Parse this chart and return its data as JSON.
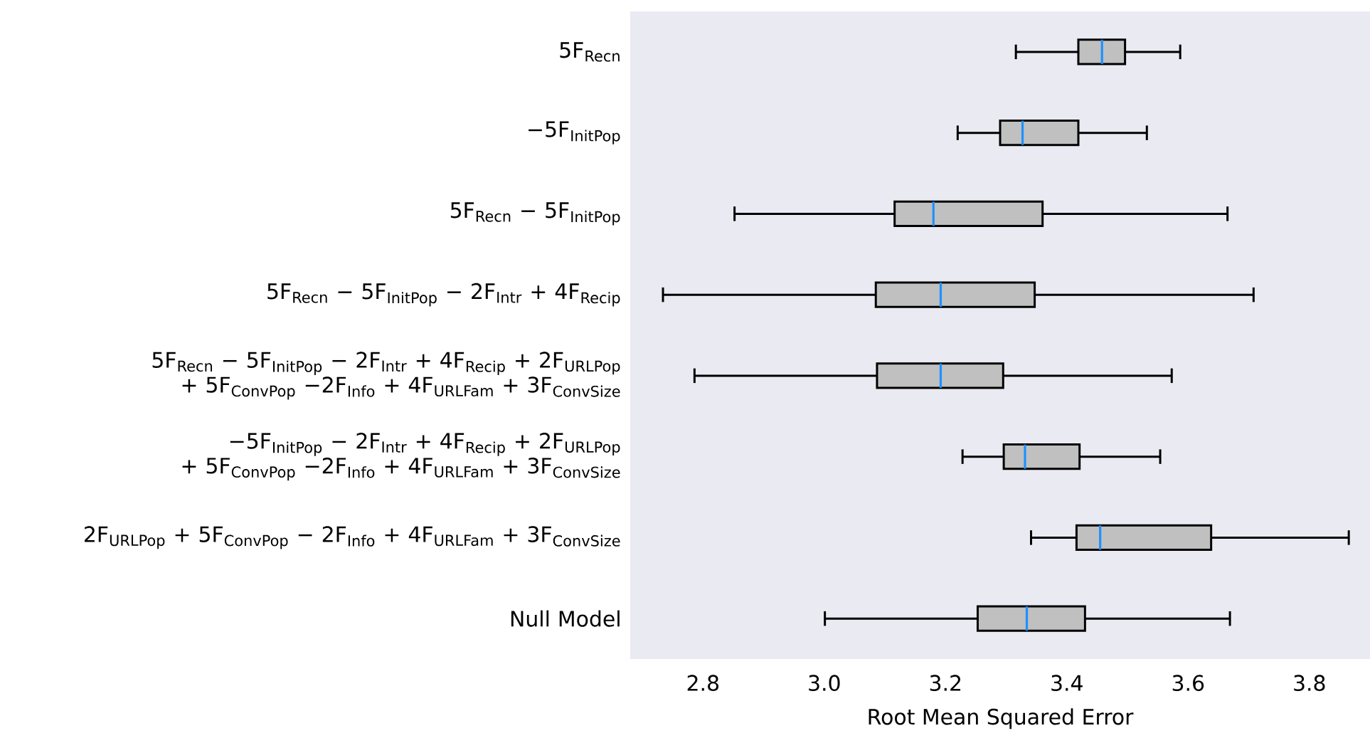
{
  "chart_data": {
    "type": "box",
    "orientation": "horizontal",
    "xlabel": "Root Mean Squared Error",
    "categories": [
      "5F$_{Recn}$",
      "−5F$_{InitPop}$",
      "5F$_{Recn}$ − 5F$_{InitPop}$",
      "5F$_{Recn}$ − 5F$_{InitPop}$ − 2F$_{Intr}$ + 4F$_{Recip}$",
      "5F$_{Recn}$ − 5F$_{InitPop}$ − 2F$_{Intr}$ + 4F$_{Recip}$ + 2F$_{URLPop}$ + 5F$_{ConvPop}$ −2F$_{Info}$ + 4F$_{URLFam}$ + 3F$_{ConvSize}$",
      "−5F$_{InitPop}$ − 2F$_{Intr}$ + 4F$_{Recip}$ + 2F$_{URLPop}$ + 5F$_{ConvPop}$ −2F$_{Info}$ + 4F$_{URLFam}$ + 3F$_{ConvSize}$",
      "2F$_{URLPop}$ + 5F$_{ConvPop}$ − 2F$_{Info}$ + 4F$_{URLFam}$ + 3F$_{ConvSize}$",
      "Null Model"
    ],
    "boxes": [
      {
        "low": 3.316,
        "q1": 3.419,
        "median": 3.458,
        "q3": 3.496,
        "high": 3.587
      },
      {
        "low": 3.22,
        "q1": 3.29,
        "median": 3.327,
        "q3": 3.419,
        "high": 3.532
      },
      {
        "low": 2.852,
        "q1": 3.116,
        "median": 3.18,
        "q3": 3.36,
        "high": 3.665
      },
      {
        "low": 2.734,
        "q1": 3.085,
        "median": 3.192,
        "q3": 3.347,
        "high": 3.708
      },
      {
        "low": 2.786,
        "q1": 3.087,
        "median": 3.192,
        "q3": 3.295,
        "high": 3.573
      },
      {
        "low": 3.228,
        "q1": 3.296,
        "median": 3.331,
        "q3": 3.421,
        "high": 3.554
      },
      {
        "low": 3.341,
        "q1": 3.416,
        "median": 3.455,
        "q3": 3.638,
        "high": 3.865
      },
      {
        "low": 3.001,
        "q1": 3.253,
        "median": 3.334,
        "q3": 3.43,
        "high": 3.669
      }
    ],
    "color": "#c0c0c0",
    "xlim": [
      2.68,
      3.9
    ],
    "xticks": [
      2.8,
      {
        "value": 3.0,
        "label": "3.0"
      },
      3.2,
      3.4,
      3.6,
      3.8
    ],
    "grid": false
  }
}
